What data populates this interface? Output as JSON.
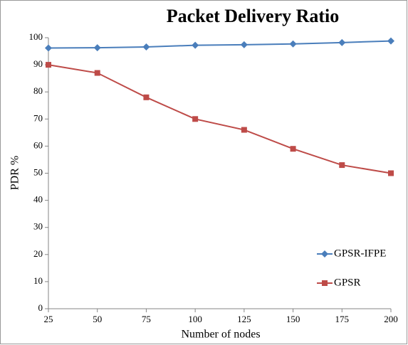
{
  "chart_data": {
    "type": "line",
    "title": "Packet Delivery Ratio",
    "x_label": "Number of nodes",
    "y_label": "PDR %",
    "x": [
      25,
      50,
      75,
      100,
      125,
      150,
      175,
      200
    ],
    "xlim": [
      25,
      200
    ],
    "xticks": [
      25,
      50,
      75,
      100,
      125,
      150,
      175,
      200
    ],
    "ylim": [
      0,
      100
    ],
    "yticks": [
      0,
      10,
      20,
      30,
      40,
      50,
      60,
      70,
      80,
      90,
      100
    ],
    "grid": false,
    "legend": "right",
    "series": [
      {
        "name": "GPSR-IFPE",
        "color": "#4a7ebb",
        "marker": "diamond",
        "values": [
          96.2,
          96.3,
          96.6,
          97.2,
          97.4,
          97.7,
          98.2,
          98.8
        ]
      },
      {
        "name": "GPSR",
        "color": "#be4b48",
        "marker": "square",
        "values": [
          90,
          87,
          78,
          70,
          66,
          59,
          53,
          50
        ]
      }
    ]
  }
}
